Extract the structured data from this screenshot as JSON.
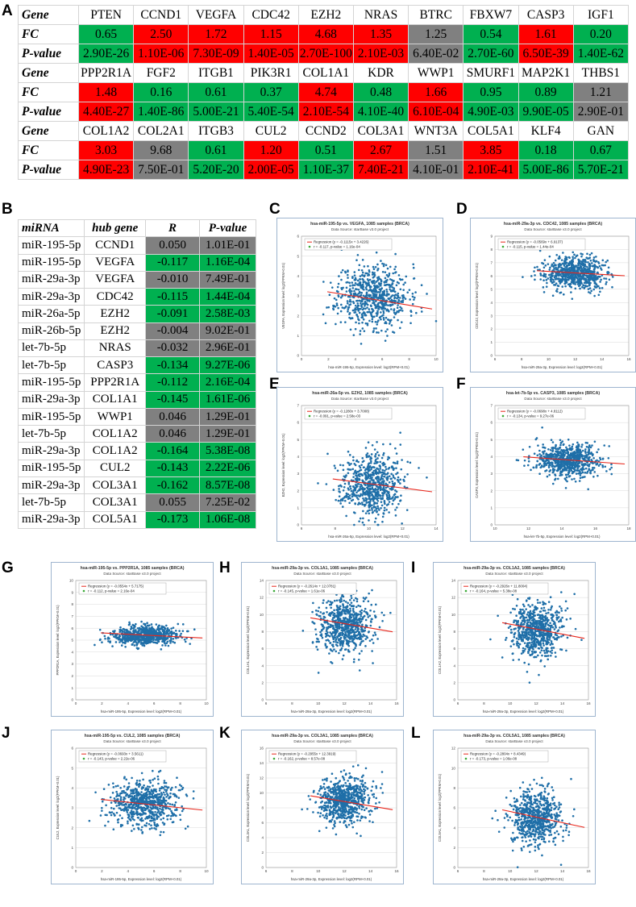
{
  "panel_letters": {
    "A": "A",
    "B": "B",
    "C": "C",
    "D": "D",
    "E": "E",
    "F": "F",
    "G": "G",
    "H": "H",
    "I": "I",
    "J": "J",
    "K": "K",
    "L": "L"
  },
  "table_a": {
    "row_labels": {
      "gene": "Gene",
      "fc": "FC",
      "pvalue": "P-value"
    },
    "colors": {
      "red": "#ff0000",
      "green": "#00b050",
      "gray": "#808080"
    },
    "blocks": [
      {
        "genes": [
          "PTEN",
          "CCND1",
          "VEGFA",
          "CDC42",
          "EZH2",
          "NRAS",
          "BTRC",
          "FBXW7",
          "CASP3",
          "IGF1"
        ],
        "fc": [
          "0.65",
          "2.50",
          "1.72",
          "1.15",
          "4.68",
          "1.35",
          "1.25",
          "0.54",
          "1.61",
          "0.20"
        ],
        "pvalue": [
          "2.90E-26",
          "1.10E-06",
          "7.30E-09",
          "1.40E-05",
          "2.70E-100",
          "2.10E-03",
          "6.40E-02",
          "2.70E-60",
          "6.50E-39",
          "1.40E-62"
        ],
        "status": [
          "green",
          "red",
          "red",
          "red",
          "red",
          "red",
          "gray",
          "green",
          "red",
          "green"
        ]
      },
      {
        "genes": [
          "PPP2R1A",
          "FGF2",
          "ITGB1",
          "PIK3R1",
          "COL1A1",
          "KDR",
          "WWP1",
          "SMURF1",
          "MAP2K1",
          "THBS1"
        ],
        "fc": [
          "1.48",
          "0.16",
          "0.61",
          "0.37",
          "4.74",
          "0.48",
          "1.66",
          "0.95",
          "0.89",
          "1.21"
        ],
        "pvalue": [
          "4.40E-27",
          "1.40E-86",
          "5.00E-21",
          "5.40E-54",
          "2.10E-54",
          "4.10E-40",
          "6.10E-04",
          "4.90E-03",
          "9.90E-05",
          "2.90E-01"
        ],
        "status": [
          "red",
          "green",
          "green",
          "green",
          "red",
          "green",
          "red",
          "green",
          "green",
          "gray"
        ]
      },
      {
        "genes": [
          "COL1A2",
          "COL2A1",
          "ITGB3",
          "CUL2",
          "CCND2",
          "COL3A1",
          "WNT3A",
          "COL5A1",
          "KLF4",
          "GAN"
        ],
        "fc": [
          "3.03",
          "9.68",
          "0.61",
          "1.20",
          "0.51",
          "2.67",
          "1.51",
          "3.85",
          "0.18",
          "0.67"
        ],
        "pvalue": [
          "4.90E-23",
          "7.50E-01",
          "5.20E-20",
          "2.00E-05",
          "1.10E-37",
          "7.40E-21",
          "4.10E-01",
          "2.10E-41",
          "5.00E-86",
          "5.70E-21"
        ],
        "status": [
          "red",
          "gray",
          "green",
          "red",
          "green",
          "red",
          "gray",
          "red",
          "green",
          "green"
        ]
      }
    ]
  },
  "table_b": {
    "headers": [
      "miRNA",
      "hub gene",
      "R",
      "P-value"
    ],
    "rows": [
      {
        "mirna": "miR-195-5p",
        "gene": "CCND1",
        "r": "0.050",
        "p": "1.01E-01",
        "status": "gray"
      },
      {
        "mirna": "miR-195-5p",
        "gene": "VEGFA",
        "r": "-0.117",
        "p": "1.16E-04",
        "status": "green"
      },
      {
        "mirna": "miR-29a-3p",
        "gene": "VEGFA",
        "r": "-0.010",
        "p": "7.49E-01",
        "status": "gray"
      },
      {
        "mirna": "miR-29a-3p",
        "gene": "CDC42",
        "r": "-0.115",
        "p": "1.44E-04",
        "status": "green"
      },
      {
        "mirna": "miR-26a-5p",
        "gene": "EZH2",
        "r": "-0.091",
        "p": "2.58E-03",
        "status": "green"
      },
      {
        "mirna": "miR-26b-5p",
        "gene": "EZH2",
        "r": "-0.004",
        "p": "9.02E-01",
        "status": "gray"
      },
      {
        "mirna": "let-7b-5p",
        "gene": "NRAS",
        "r": "-0.032",
        "p": "2.96E-01",
        "status": "gray"
      },
      {
        "mirna": "let-7b-5p",
        "gene": "CASP3",
        "r": "-0.134",
        "p": "9.27E-06",
        "status": "green"
      },
      {
        "mirna": "miR-195-5p",
        "gene": "PPP2R1A",
        "r": "-0.112",
        "p": "2.16E-04",
        "status": "green"
      },
      {
        "mirna": "miR-29a-3p",
        "gene": "COL1A1",
        "r": "-0.145",
        "p": "1.61E-06",
        "status": "green"
      },
      {
        "mirna": "miR-195-5p",
        "gene": "WWP1",
        "r": "0.046",
        "p": "1.29E-01",
        "status": "gray"
      },
      {
        "mirna": "let-7b-5p",
        "gene": "COL1A2",
        "r": "0.046",
        "p": "1.29E-01",
        "status": "gray"
      },
      {
        "mirna": "miR-29a-3p",
        "gene": "COL1A2",
        "r": "-0.164",
        "p": "5.38E-08",
        "status": "green"
      },
      {
        "mirna": "miR-195-5p",
        "gene": "CUL2",
        "r": "-0.143",
        "p": "2.22E-06",
        "status": "green"
      },
      {
        "mirna": "miR-29a-3p",
        "gene": "COL3A1",
        "r": "-0.162",
        "p": "8.57E-08",
        "status": "green"
      },
      {
        "mirna": "let-7b-5p",
        "gene": "COL3A1",
        "r": "0.055",
        "p": "7.25E-02",
        "status": "gray"
      },
      {
        "mirna": "miR-29a-3p",
        "gene": "COL5A1",
        "r": "-0.173",
        "p": "1.06E-08",
        "status": "green"
      }
    ]
  },
  "chart_data": [
    {
      "panel": "C",
      "type": "scatter",
      "title": "hsa-miR-195-5p vs. VEGFA, 1085 samples (BRCA)",
      "subtitle": "Data Source: starBase v3.0 project",
      "legend_regression": "Regression (y = -0.1115x + 3.4226)",
      "legend_stats": "r = -0.117, p-value = 1.16e-04",
      "xlabel": "hsa-miR-195-5p, Expression level: log2(RPM+0.01)",
      "ylabel": "VEGFA, Expression level: log2(FPKM+0.01)",
      "xlim": [
        0,
        10
      ],
      "ylim": [
        0,
        6
      ],
      "xticks": [
        "0",
        "2",
        "4",
        "6",
        "8",
        "10"
      ],
      "yticks": [
        "0",
        "1",
        "2",
        "3",
        "4",
        "5",
        "6"
      ],
      "slope": -0.1115,
      "intercept": 3.4226,
      "center": [
        5.3,
        3.0
      ],
      "spread": [
        1.3,
        0.8
      ],
      "n": 700,
      "seed": 11
    },
    {
      "panel": "D",
      "type": "scatter",
      "title": "hsa-miR-29a-3p vs. CDC42, 1085 samples (BRCA)",
      "subtitle": "Data Source: starBase v3.0 project",
      "legend_regression": "Regression (y = -0.0569x + 6.9137)",
      "legend_stats": "r = -0.115, p-value = 1.44e-04",
      "xlabel": "hsa-miR-29a-3p, Expression level: log2(RPM+0.01)",
      "ylabel": "CDC42, Expression level: log2(FPKM+0.01)",
      "xlim": [
        6,
        16
      ],
      "ylim": [
        0,
        9
      ],
      "xticks": [
        "6",
        "8",
        "10",
        "12",
        "14",
        "16"
      ],
      "yticks": [
        "0",
        "1",
        "2",
        "3",
        "4",
        "5",
        "6",
        "7",
        "8",
        "9"
      ],
      "slope": -0.0569,
      "intercept": 6.9137,
      "center": [
        12.0,
        6.2
      ],
      "spread": [
        1.1,
        0.6
      ],
      "n": 700,
      "seed": 22
    },
    {
      "panel": "E",
      "type": "scatter",
      "title": "hsa-miR-26a-5p vs. EZH2, 1085 samples (BRCA)",
      "subtitle": "Data Source: starBase v3.0 project",
      "legend_regression": "Regression (y = -0.1280x + 3.7008)",
      "legend_stats": "r = -0.091, p-value = 2.58e-03",
      "xlabel": "hsa-miR-26a-5p, Expression level: log2(RPM+0.01)",
      "ylabel": "EZH2, Expression level: log2(FPKM+0.01)",
      "xlim": [
        6,
        14
      ],
      "ylim": [
        0,
        7
      ],
      "xticks": [
        "6",
        "8",
        "10",
        "12",
        "14"
      ],
      "yticks": [
        "0",
        "1",
        "2",
        "3",
        "4",
        "5",
        "6",
        "7"
      ],
      "slope": -0.128,
      "intercept": 3.7008,
      "center": [
        10.2,
        2.4
      ],
      "spread": [
        0.9,
        0.9
      ],
      "n": 700,
      "seed": 33
    },
    {
      "panel": "F",
      "type": "scatter",
      "title": "hsa-let-7b-5p vs. CASP3, 1085 samples (BRCA)",
      "subtitle": "Data Source: starBase v3.0 project",
      "legend_regression": "Regression (y = -0.0698x + 4.8112)",
      "legend_stats": "r = -0.134, p-value = 9.27e-06",
      "xlabel": "hsa-let-7b-5p, Expression level: log2(RPM+0.01)",
      "ylabel": "CASP3, Expression level: log2(FPKM+0.01)",
      "xlim": [
        10,
        18
      ],
      "ylim": [
        0,
        7
      ],
      "xticks": [
        "10",
        "12",
        "14",
        "16",
        "18"
      ],
      "yticks": [
        "0",
        "1",
        "2",
        "3",
        "4",
        "5",
        "6",
        "7"
      ],
      "slope": -0.0698,
      "intercept": 4.8112,
      "center": [
        14.3,
        3.8
      ],
      "spread": [
        1.0,
        0.5
      ],
      "n": 700,
      "seed": 44
    },
    {
      "panel": "G",
      "type": "scatter",
      "title": "hsa-miR-195-5p vs. PPP2R1A, 1085 samples (BRCA)",
      "subtitle": "Data Source: starBase v3.0 project",
      "legend_regression": "Regression (y = -0.0554x + 5.7175)",
      "legend_stats": "r = -0.112, p-value = 2.16e-04",
      "xlabel": "hsa-miR-195-5p, Expression level: log2(RPM+0.01)",
      "ylabel": "PPP2R1A, Expression level: log2(FPKM+0.01)",
      "xlim": [
        0,
        10
      ],
      "ylim": [
        0,
        10
      ],
      "xticks": [
        "0",
        "2",
        "4",
        "6",
        "8",
        "10"
      ],
      "yticks": [
        "0",
        "1",
        "2",
        "3",
        "4",
        "5",
        "6",
        "7",
        "8",
        "9",
        "10"
      ],
      "slope": -0.0554,
      "intercept": 5.7175,
      "center": [
        5.3,
        5.4
      ],
      "spread": [
        1.3,
        0.4
      ],
      "n": 700,
      "seed": 55
    },
    {
      "panel": "H",
      "type": "scatter",
      "title": "hsa-miR-29a-3p vs. COL1A1, 1085 samples (BRCA)",
      "subtitle": "Data Source: starBase v3.0 project",
      "legend_regression": "Regression (y = -0.2614x + 12.0781)",
      "legend_stats": "r = -0.145, p-value = 1.61e-06",
      "xlabel": "hsa-miR-29a-3p, Expression level: log2(RPM+0.01)",
      "ylabel": "COL1A1, Expression level: log2(FPKM+0.01)",
      "xlim": [
        6,
        16
      ],
      "ylim": [
        0,
        14
      ],
      "xticks": [
        "6",
        "8",
        "10",
        "12",
        "14",
        "16"
      ],
      "yticks": [
        "0",
        "2",
        "4",
        "6",
        "8",
        "10",
        "12",
        "14"
      ],
      "slope": -0.2614,
      "intercept": 12.0781,
      "center": [
        12.0,
        8.6
      ],
      "spread": [
        1.0,
        1.6
      ],
      "n": 700,
      "seed": 66
    },
    {
      "panel": "I",
      "type": "scatter",
      "title": "hsa-miR-29a-3p vs. COL1A2, 1085 samples (BRCA)",
      "subtitle": "Data Source: starBase v3.0 project",
      "legend_regression": "Regression (y = -0.2926x + 11.8004)",
      "legend_stats": "r = -0.164, p-value = 5.38e-08",
      "xlabel": "hsa-miR-29a-3p, Expression level: log2(RPM+0.01)",
      "ylabel": "COL1A2, Expression level: log2(FPKM+0.01)",
      "xlim": [
        6,
        16
      ],
      "ylim": [
        0,
        14
      ],
      "xticks": [
        "6",
        "8",
        "10",
        "12",
        "14",
        "16"
      ],
      "yticks": [
        "0",
        "2",
        "4",
        "6",
        "8",
        "10",
        "12",
        "14"
      ],
      "slope": -0.2926,
      "intercept": 11.8004,
      "center": [
        12.0,
        8.1
      ],
      "spread": [
        1.0,
        1.6
      ],
      "n": 700,
      "seed": 77
    },
    {
      "panel": "J",
      "type": "scatter",
      "title": "hsa-miR-195-5p vs. CUL2, 1085 samples (BRCA)",
      "subtitle": "Data Source: starBase v3.0 project",
      "legend_regression": "Regression (y = -0.0693x + 3.5611)",
      "legend_stats": "r = -0.143, p-value = 2.22e-06",
      "xlabel": "hsa-miR-195-5p, Expression level: log2(RPM+0.01)",
      "ylabel": "CUL2, Expression level: log2(FPKM+0.01)",
      "xlim": [
        0,
        10
      ],
      "ylim": [
        0,
        6
      ],
      "xticks": [
        "0",
        "2",
        "4",
        "6",
        "8",
        "10"
      ],
      "yticks": [
        "0",
        "1",
        "2",
        "3",
        "4",
        "5",
        "6"
      ],
      "slope": -0.0693,
      "intercept": 3.5611,
      "center": [
        5.3,
        3.2
      ],
      "spread": [
        1.3,
        0.6
      ],
      "n": 700,
      "seed": 88
    },
    {
      "panel": "K",
      "type": "scatter",
      "title": "hsa-miR-29a-3p vs. COL3A1, 1085 samples (BRCA)",
      "subtitle": "Data Source: starBase v3.0 project",
      "legend_regression": "Regression (y = -0.2955x + 12.3919)",
      "legend_stats": "r = -0.162, p-value = 8.57e-08",
      "xlabel": "hsa-miR-29a-3p, Expression level: log2(RPM+0.01)",
      "ylabel": "COL3A1, Expression level: log2(FPKM+0.01)",
      "xlim": [
        6,
        16
      ],
      "ylim": [
        0,
        16
      ],
      "xticks": [
        "6",
        "8",
        "10",
        "12",
        "14",
        "16"
      ],
      "yticks": [
        "0",
        "2",
        "4",
        "6",
        "8",
        "10",
        "12",
        "14",
        "16"
      ],
      "slope": -0.2955,
      "intercept": 12.3919,
      "center": [
        12.0,
        9.0
      ],
      "spread": [
        1.0,
        1.5
      ],
      "n": 700,
      "seed": 99
    },
    {
      "panel": "L",
      "type": "scatter",
      "title": "hsa-miR-29a-3p vs. COL5A1, 1085 samples (BRCA)",
      "subtitle": "Data Source: starBase v3.0 project",
      "legend_regression": "Regression (y = -0.2804x + 8.4349)",
      "legend_stats": "r = -0.173, p-value = 1.06e-08",
      "xlabel": "hsa-miR-29a-3p, Expression level: log2(RPM+0.01)",
      "ylabel": "COL5A1, Expression level: log2(FPKM+0.01)",
      "xlim": [
        6,
        16
      ],
      "ylim": [
        0,
        12
      ],
      "xticks": [
        "6",
        "8",
        "10",
        "12",
        "14",
        "16"
      ],
      "yticks": [
        "0",
        "2",
        "4",
        "6",
        "8",
        "10",
        "12"
      ],
      "slope": -0.2804,
      "intercept": 8.4349,
      "center": [
        12.0,
        5.0
      ],
      "spread": [
        1.0,
        1.4
      ],
      "n": 700,
      "seed": 111
    }
  ]
}
